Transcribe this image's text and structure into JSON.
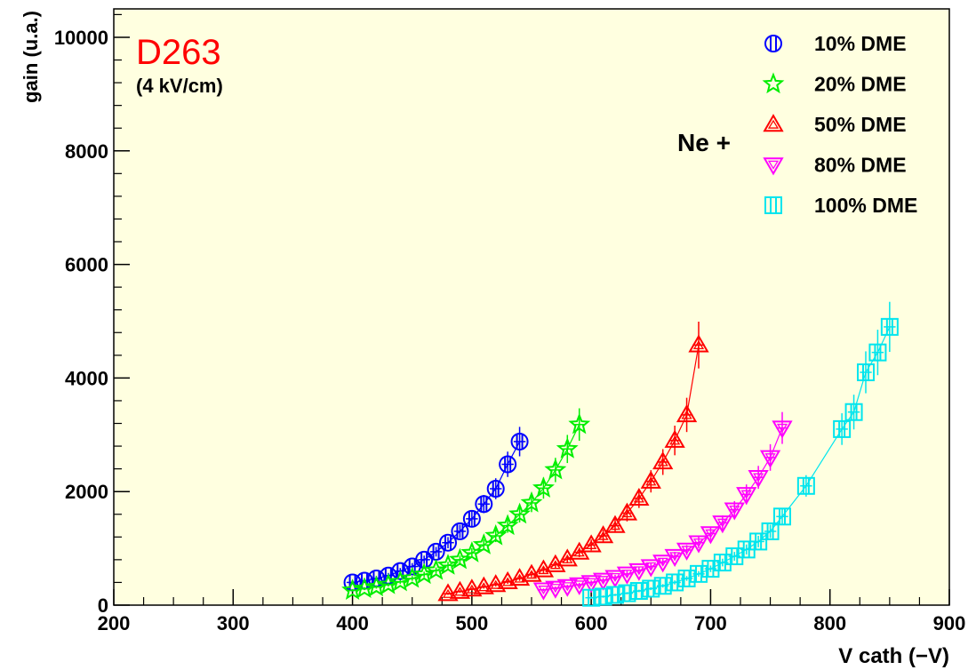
{
  "chart_data": {
    "type": "scatter",
    "title": "D263",
    "subtitle": "(4 kV/cm)",
    "xlabel": "V cath (−V)",
    "ylabel": "gain (u.a.)",
    "xlim": [
      200,
      900
    ],
    "ylim": [
      0,
      10500
    ],
    "xticks": [
      200,
      300,
      400,
      500,
      600,
      700,
      800,
      900
    ],
    "yticks": [
      0,
      2000,
      4000,
      6000,
      8000,
      10000
    ],
    "grid": false,
    "legend_position": "top-right",
    "legend_prefix": "Ne +",
    "colors": {
      "plot_bg": "#ffffe0",
      "title": "#ff0000",
      "axis": "#000000"
    },
    "series": [
      {
        "name": "10% DME",
        "color": "#0000ff",
        "marker": "circle",
        "x": [
          400,
          410,
          420,
          430,
          440,
          450,
          460,
          470,
          480,
          490,
          500,
          510,
          520,
          530,
          540
        ],
        "y": [
          400,
          430,
          470,
          520,
          600,
          680,
          800,
          940,
          1100,
          1300,
          1520,
          1780,
          2050,
          2480,
          2880
        ]
      },
      {
        "name": "20% DME",
        "color": "#00ee00",
        "marker": "star",
        "x": [
          400,
          410,
          420,
          430,
          440,
          450,
          460,
          470,
          480,
          490,
          500,
          510,
          520,
          530,
          540,
          550,
          560,
          570,
          580,
          590
        ],
        "y": [
          260,
          290,
          320,
          360,
          410,
          470,
          540,
          610,
          700,
          800,
          920,
          1060,
          1220,
          1400,
          1600,
          1800,
          2060,
          2380,
          2750,
          3180
        ]
      },
      {
        "name": "50% DME",
        "color": "#ff0000",
        "marker": "triangle-up",
        "x": [
          480,
          490,
          500,
          510,
          520,
          530,
          540,
          550,
          560,
          570,
          580,
          590,
          600,
          610,
          620,
          630,
          640,
          650,
          660,
          670,
          680,
          690
        ],
        "y": [
          200,
          240,
          280,
          320,
          360,
          410,
          470,
          540,
          620,
          710,
          810,
          930,
          1060,
          1220,
          1400,
          1620,
          1880,
          2180,
          2520,
          2900,
          3350,
          4580
        ]
      },
      {
        "name": "80% DME",
        "color": "#ff00ff",
        "marker": "triangle-down",
        "x": [
          560,
          570,
          580,
          590,
          600,
          610,
          620,
          630,
          640,
          650,
          660,
          670,
          680,
          690,
          700,
          710,
          720,
          730,
          740,
          750,
          760
        ],
        "y": [
          270,
          300,
          330,
          360,
          400,
          440,
          490,
          550,
          610,
          680,
          760,
          860,
          970,
          1100,
          1260,
          1450,
          1680,
          1950,
          2250,
          2600,
          3120
        ]
      },
      {
        "name": "100% DME",
        "color": "#00e5ee",
        "marker": "square",
        "x": [
          600,
          610,
          620,
          630,
          640,
          650,
          660,
          670,
          680,
          690,
          700,
          710,
          720,
          730,
          740,
          750,
          760,
          780,
          810,
          820,
          830,
          840,
          850
        ],
        "y": [
          130,
          150,
          180,
          210,
          250,
          290,
          340,
          400,
          470,
          550,
          640,
          750,
          860,
          980,
          1120,
          1300,
          1560,
          2100,
          3100,
          3400,
          4100,
          4450,
          4900
        ]
      }
    ]
  }
}
